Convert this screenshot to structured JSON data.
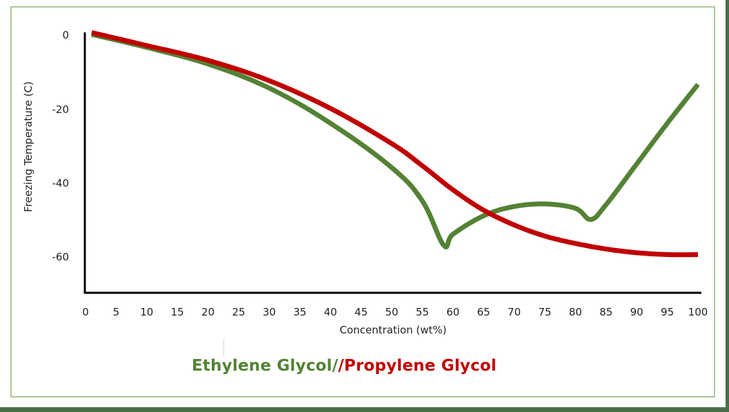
{
  "chart_data": {
    "type": "line",
    "title": "",
    "xlabel": "Concentration (wt%)",
    "ylabel": "Freezing Temperature (C)",
    "xlim": [
      0,
      100
    ],
    "ylim": [
      -70,
      0
    ],
    "grid": false,
    "x_ticks": [
      "0",
      "5",
      "10",
      "15",
      "20",
      "25",
      "30",
      "35",
      "40",
      "45",
      "50",
      "55",
      "60",
      "65",
      "70",
      "75",
      "80",
      "85",
      "90",
      "95",
      "100"
    ],
    "y_ticks": [
      "0",
      "-20",
      "-40",
      "-60"
    ],
    "legend_position": "bottom-center",
    "series": [
      {
        "name": "Ethylene Glycol",
        "color": "#548235",
        "points": [
          [
            1,
            0
          ],
          [
            10,
            -3.5
          ],
          [
            20,
            -8
          ],
          [
            30,
            -14.5
          ],
          [
            40,
            -24
          ],
          [
            50,
            -36
          ],
          [
            55,
            -45
          ],
          [
            58.5,
            -57
          ],
          [
            60,
            -54
          ],
          [
            65,
            -49
          ],
          [
            70,
            -46.5
          ],
          [
            75,
            -45.8
          ],
          [
            80,
            -47
          ],
          [
            82.5,
            -50
          ],
          [
            85,
            -46
          ],
          [
            90,
            -35
          ],
          [
            95,
            -24
          ],
          [
            100,
            -13.5
          ]
        ]
      },
      {
        "name": "Propylene Glycol",
        "color": "#c00000",
        "points": [
          [
            1,
            0.5
          ],
          [
            10,
            -3
          ],
          [
            20,
            -7
          ],
          [
            30,
            -12.5
          ],
          [
            40,
            -20
          ],
          [
            50,
            -29.5
          ],
          [
            55,
            -35.5
          ],
          [
            60,
            -42
          ],
          [
            65,
            -47.5
          ],
          [
            70,
            -51.5
          ],
          [
            75,
            -54.5
          ],
          [
            80,
            -56.5
          ],
          [
            85,
            -58
          ],
          [
            90,
            -59
          ],
          [
            95,
            -59.5
          ],
          [
            100,
            -59.5
          ]
        ]
      }
    ]
  },
  "legend": {
    "ethylene_label": "Ethylene Glycol/",
    "propylene_label": "/Propylene Glycol",
    "ethylene_color": "#548235",
    "propylene_color": "#c00000"
  },
  "axes": {
    "x_title": "Concentration (wt%)",
    "y_title": "Freezing Temperature (C)",
    "x_ticks": [
      "0",
      "5",
      "10",
      "15",
      "20",
      "25",
      "30",
      "35",
      "40",
      "45",
      "50",
      "55",
      "60",
      "65",
      "70",
      "75",
      "80",
      "85",
      "90",
      "95",
      "100"
    ],
    "y_ticks": [
      "0",
      "-20",
      "-40",
      "-60"
    ]
  }
}
